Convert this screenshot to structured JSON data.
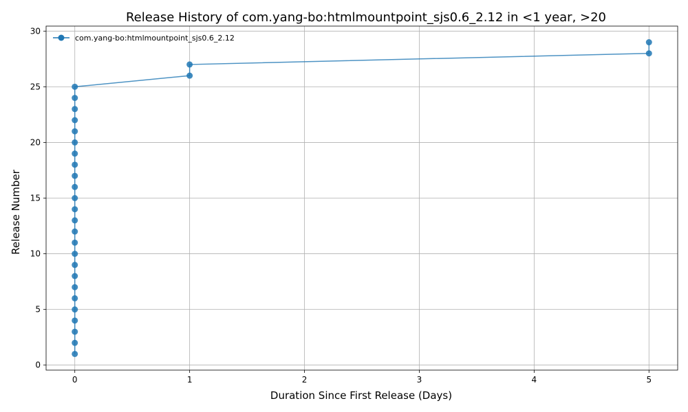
{
  "chart_data": {
    "type": "line",
    "title": "Release History of com.yang-bo:htmlmountpoint_sjs0.6_2.12 in <1 year, >20",
    "xlabel": "Duration Since First Release (Days)",
    "ylabel": "Release Number",
    "xlim": [
      -0.25,
      5.25
    ],
    "ylim": [
      -0.45,
      30.45
    ],
    "xticks": [
      0,
      1,
      2,
      3,
      4,
      5
    ],
    "yticks": [
      0,
      5,
      10,
      15,
      20,
      25,
      30
    ],
    "grid": true,
    "legend_position": "top-left",
    "series": [
      {
        "name": "com.yang-bo:htmlmountpoint_sjs0.6_2.12",
        "color": "#1f77b4",
        "x": [
          0,
          0,
          0,
          0,
          0,
          0,
          0,
          0,
          0,
          0,
          0,
          0,
          0,
          0,
          0,
          0,
          0,
          0,
          0,
          0,
          0,
          0,
          0,
          0,
          0,
          1,
          1,
          5,
          5
        ],
        "y": [
          1,
          2,
          3,
          4,
          5,
          6,
          7,
          8,
          9,
          10,
          11,
          12,
          13,
          14,
          15,
          16,
          17,
          18,
          19,
          20,
          21,
          22,
          23,
          24,
          25,
          26,
          27,
          28,
          29
        ]
      }
    ]
  }
}
